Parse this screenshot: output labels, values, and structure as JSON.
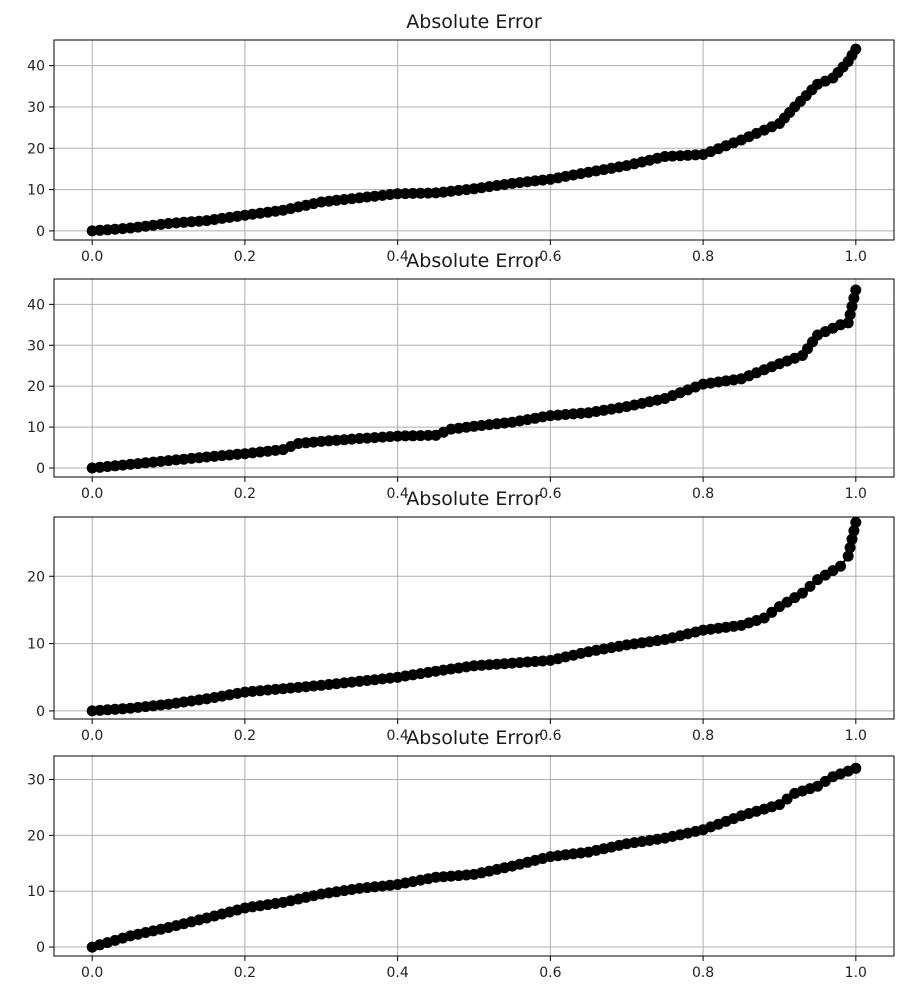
{
  "chart_data": [
    {
      "type": "line",
      "title": "Absolute Error",
      "xlabel": "",
      "ylabel": "",
      "xlim": [
        -0.05,
        1.05
      ],
      "ylim": [
        -2.2,
        46.2
      ],
      "xticks": [
        0.0,
        0.2,
        0.4,
        0.6,
        0.8,
        1.0
      ],
      "xtick_labels": [
        "0.0",
        "0.2",
        "0.4",
        "0.6",
        "0.8",
        "1.0"
      ],
      "yticks": [
        0,
        10,
        20,
        30,
        40
      ],
      "ytick_labels": [
        "0",
        "10",
        "20",
        "30",
        "40"
      ],
      "grid": true,
      "line_color": "#000000",
      "marker": "circle",
      "x": [
        0.0,
        0.05,
        0.1,
        0.15,
        0.2,
        0.25,
        0.3,
        0.35,
        0.4,
        0.45,
        0.5,
        0.55,
        0.6,
        0.65,
        0.7,
        0.75,
        0.8,
        0.85,
        0.9,
        0.92,
        0.95,
        0.97,
        0.99,
        1.0
      ],
      "y": [
        0.0,
        0.7,
        1.8,
        2.5,
        3.8,
        5.0,
        7.0,
        8.0,
        9.0,
        9.2,
        10.2,
        11.5,
        12.5,
        14.2,
        15.8,
        18.0,
        18.5,
        22.0,
        26.0,
        30.0,
        35.5,
        37.0,
        41.0,
        44.0
      ]
    },
    {
      "type": "line",
      "title": "Absolute Error",
      "xlabel": "",
      "ylabel": "",
      "xlim": [
        -0.05,
        1.05
      ],
      "ylim": [
        -2.2,
        46.2
      ],
      "xticks": [
        0.0,
        0.2,
        0.4,
        0.6,
        0.8,
        1.0
      ],
      "xtick_labels": [
        "0.0",
        "0.2",
        "0.4",
        "0.6",
        "0.8",
        "1.0"
      ],
      "yticks": [
        0,
        10,
        20,
        30,
        40
      ],
      "ytick_labels": [
        "0",
        "10",
        "20",
        "30",
        "40"
      ],
      "grid": true,
      "line_color": "#000000",
      "marker": "circle",
      "x": [
        0.0,
        0.05,
        0.1,
        0.15,
        0.2,
        0.25,
        0.27,
        0.3,
        0.35,
        0.4,
        0.45,
        0.47,
        0.5,
        0.55,
        0.6,
        0.65,
        0.7,
        0.75,
        0.8,
        0.85,
        0.9,
        0.93,
        0.95,
        0.98,
        0.99,
        1.0
      ],
      "y": [
        0.0,
        0.9,
        1.8,
        2.7,
        3.5,
        4.5,
        6.0,
        6.5,
        7.2,
        7.8,
        8.0,
        9.5,
        10.2,
        11.2,
        12.8,
        13.5,
        15.0,
        17.0,
        20.5,
        21.8,
        25.5,
        27.5,
        32.5,
        35.0,
        35.5,
        43.5
      ]
    },
    {
      "type": "line",
      "title": "Absolute Error",
      "xlabel": "",
      "ylabel": "",
      "xlim": [
        -0.05,
        1.05
      ],
      "ylim": [
        -1.2,
        28.8
      ],
      "xticks": [
        0.0,
        0.2,
        0.4,
        0.6,
        0.8,
        1.0
      ],
      "xtick_labels": [
        "0.0",
        "0.2",
        "0.4",
        "0.6",
        "0.8",
        "1.0"
      ],
      "yticks": [
        0,
        10,
        20
      ],
      "ytick_labels": [
        "0",
        "10",
        "20"
      ],
      "grid": true,
      "line_color": "#000000",
      "marker": "circle",
      "x": [
        0.0,
        0.05,
        0.1,
        0.15,
        0.2,
        0.25,
        0.3,
        0.35,
        0.4,
        0.45,
        0.5,
        0.55,
        0.6,
        0.65,
        0.7,
        0.75,
        0.8,
        0.85,
        0.88,
        0.9,
        0.93,
        0.95,
        0.98,
        0.99,
        1.0
      ],
      "y": [
        0.0,
        0.4,
        1.0,
        1.8,
        2.8,
        3.3,
        3.8,
        4.4,
        5.0,
        5.9,
        6.7,
        7.1,
        7.5,
        8.8,
        9.8,
        10.6,
        12.0,
        12.7,
        13.8,
        15.5,
        17.5,
        19.5,
        21.5,
        23.0,
        28.0
      ]
    },
    {
      "type": "line",
      "title": "Absolute Error",
      "xlabel": "",
      "ylabel": "",
      "xlim": [
        -0.05,
        1.05
      ],
      "ylim": [
        -1.6,
        34.2
      ],
      "xticks": [
        0.0,
        0.2,
        0.4,
        0.6,
        0.8,
        1.0
      ],
      "xtick_labels": [
        "0.0",
        "0.2",
        "0.4",
        "0.6",
        "0.8",
        "1.0"
      ],
      "yticks": [
        0,
        10,
        20,
        30
      ],
      "ytick_labels": [
        "0",
        "10",
        "20",
        "30"
      ],
      "grid": true,
      "line_color": "#000000",
      "marker": "circle",
      "x": [
        0.0,
        0.05,
        0.1,
        0.15,
        0.2,
        0.25,
        0.3,
        0.35,
        0.4,
        0.45,
        0.5,
        0.55,
        0.6,
        0.65,
        0.7,
        0.75,
        0.8,
        0.85,
        0.9,
        0.92,
        0.95,
        0.97,
        0.99,
        1.0
      ],
      "y": [
        0.0,
        2.0,
        3.5,
        5.2,
        7.0,
        8.0,
        9.5,
        10.5,
        11.2,
        12.5,
        13.0,
        14.5,
        16.2,
        17.0,
        18.5,
        19.5,
        21.0,
        23.5,
        25.5,
        27.5,
        28.8,
        30.5,
        31.5,
        32.0
      ]
    }
  ]
}
